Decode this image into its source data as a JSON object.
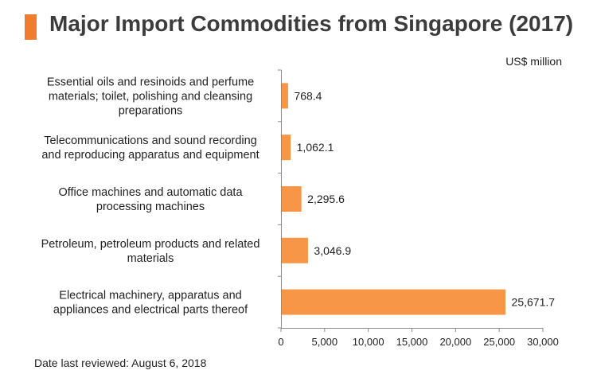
{
  "title": "Major Import Commodities from Singapore (2017)",
  "unit_label": "US$ million",
  "footer": "Date last reviewed: August 6, 2018",
  "colors": {
    "bar": "#F79646",
    "accent": "#F07D2E",
    "axis": "#8c8c8c"
  },
  "chart_data": {
    "type": "bar",
    "orientation": "horizontal",
    "title": "Major Import Commodities from Singapore (2017)",
    "categories": [
      [
        "Essential oils and resinoids and perfume",
        "materials; toilet, polishing and cleansing",
        "preparations"
      ],
      [
        "Telecommunications and sound recording",
        "and reproducing apparatus and equipment"
      ],
      [
        "Office machines and automatic data",
        "processing machines"
      ],
      [
        "Petroleum, petroleum products and related",
        "materials"
      ],
      [
        "Electrical machinery, apparatus and",
        "appliances and electrical parts thereof"
      ]
    ],
    "values": [
      768.4,
      1062.1,
      2295.6,
      3046.9,
      25671.7
    ],
    "data_labels": [
      "768.4",
      "1,062.1",
      "2,295.6",
      "3,046.9",
      "25,671.7"
    ],
    "xlim": [
      0,
      30000
    ],
    "xticks": [
      0,
      5000,
      10000,
      15000,
      20000,
      25000,
      30000
    ],
    "xtick_labels": [
      "0",
      "5,000",
      "10,000",
      "15,000",
      "20,000",
      "25,000",
      "30,000"
    ],
    "grid": false,
    "legend": "none"
  }
}
